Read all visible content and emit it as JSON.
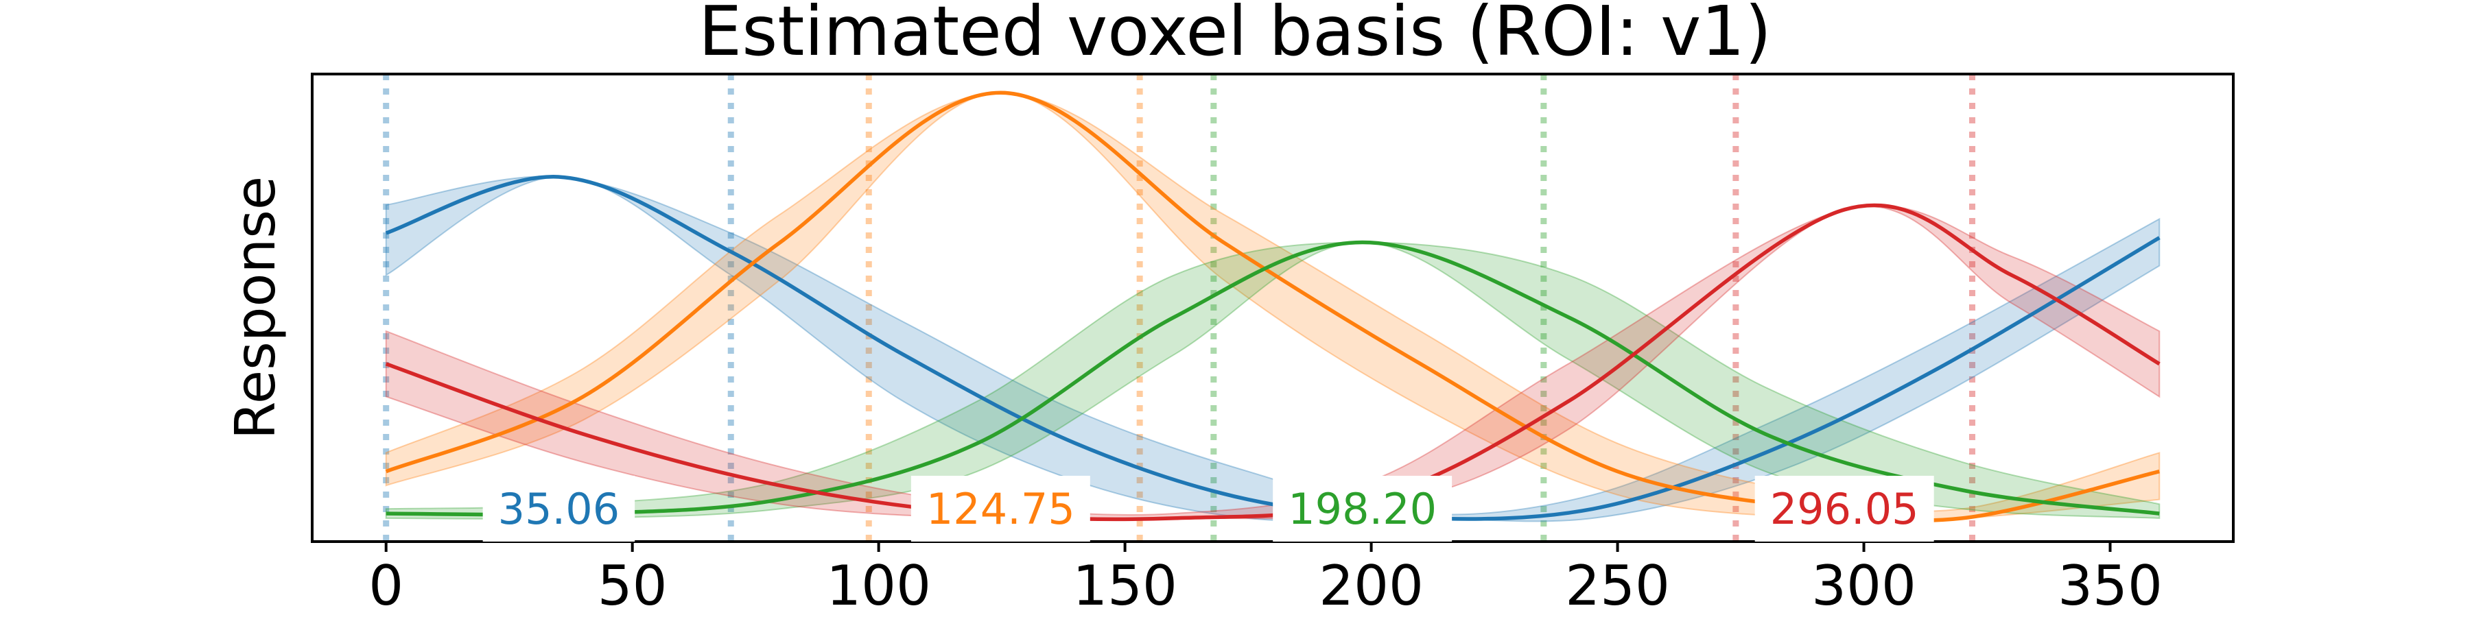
{
  "chart_data": {
    "type": "line",
    "title": "Estimated voxel basis (ROI: v1)",
    "xlabel": "",
    "ylabel": "Response",
    "xlim": [
      -15,
      375
    ],
    "ylim": [
      0,
      1
    ],
    "xticks": [
      0,
      50,
      100,
      150,
      200,
      250,
      300,
      350
    ],
    "grid": false,
    "legend": "none",
    "series": [
      {
        "color": "#1f77b4",
        "peak_label": "35.06",
        "peak": 35.06,
        "dotted_lines": [
          0,
          70
        ],
        "x": [
          0,
          35,
          70,
          105,
          140,
          175,
          210,
          245,
          280,
          315,
          360
        ],
        "y": [
          0.66,
          0.78,
          0.62,
          0.4,
          0.21,
          0.09,
          0.05,
          0.07,
          0.19,
          0.37,
          0.65
        ],
        "lower": [
          0.57,
          0.78,
          0.57,
          0.3,
          0.13,
          0.05,
          0.05,
          0.05,
          0.14,
          0.31,
          0.59
        ],
        "upper": [
          0.72,
          0.78,
          0.66,
          0.47,
          0.28,
          0.15,
          0.06,
          0.1,
          0.25,
          0.43,
          0.69
        ]
      },
      {
        "color": "#ff7f0e",
        "peak_label": "124.75",
        "peak": 124.75,
        "dotted_lines": [
          98,
          153
        ],
        "x": [
          0,
          40,
          80,
          124.75,
          170,
          210,
          250,
          290,
          320,
          360
        ],
        "y": [
          0.15,
          0.31,
          0.64,
          0.96,
          0.64,
          0.38,
          0.15,
          0.07,
          0.05,
          0.15
        ],
        "lower": [
          0.12,
          0.26,
          0.56,
          0.96,
          0.56,
          0.29,
          0.1,
          0.05,
          0.05,
          0.09
        ],
        "upper": [
          0.19,
          0.37,
          0.7,
          0.96,
          0.7,
          0.45,
          0.21,
          0.1,
          0.07,
          0.19
        ]
      },
      {
        "color": "#2ca02c",
        "peak_label": "198.20",
        "peak": 198.2,
        "dotted_lines": [
          168,
          235
        ],
        "x": [
          0,
          40,
          80,
          120,
          160,
          198.2,
          240,
          280,
          320,
          360
        ],
        "y": [
          0.06,
          0.06,
          0.09,
          0.21,
          0.48,
          0.64,
          0.48,
          0.23,
          0.11,
          0.06
        ],
        "lower": [
          0.05,
          0.05,
          0.07,
          0.15,
          0.4,
          0.64,
          0.39,
          0.15,
          0.07,
          0.05
        ],
        "upper": [
          0.07,
          0.08,
          0.13,
          0.3,
          0.57,
          0.64,
          0.57,
          0.33,
          0.17,
          0.08
        ]
      },
      {
        "color": "#d62728",
        "peak_label": "296.05",
        "peak": 296.05,
        "dotted_lines": [
          274,
          322
        ],
        "x": [
          0,
          40,
          80,
          120,
          160,
          200,
          240,
          296.05,
          330,
          360
        ],
        "y": [
          0.38,
          0.23,
          0.12,
          0.06,
          0.05,
          0.09,
          0.3,
          0.71,
          0.57,
          0.38
        ],
        "lower": [
          0.31,
          0.17,
          0.08,
          0.05,
          0.05,
          0.07,
          0.24,
          0.71,
          0.51,
          0.31
        ],
        "upper": [
          0.45,
          0.29,
          0.16,
          0.08,
          0.06,
          0.13,
          0.38,
          0.71,
          0.61,
          0.45
        ]
      }
    ]
  }
}
